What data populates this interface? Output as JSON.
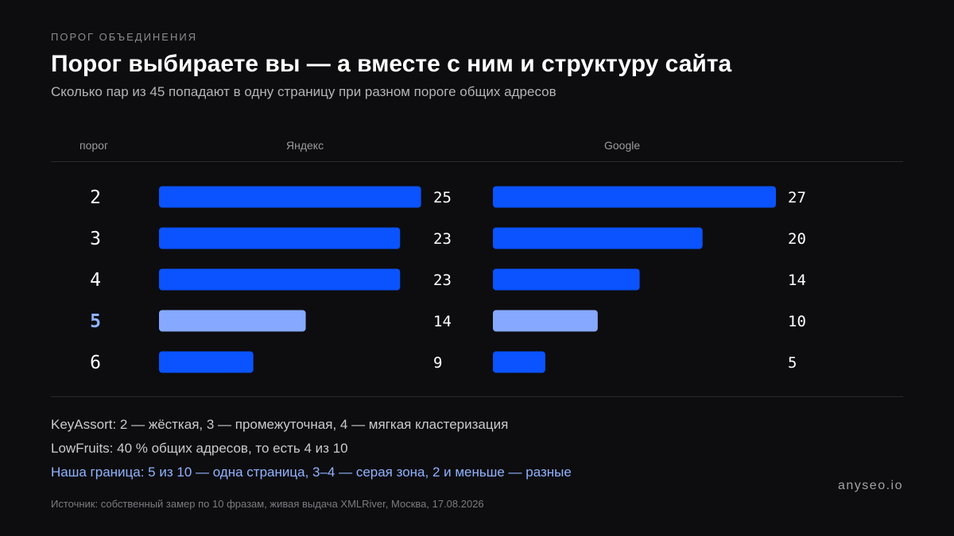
{
  "header": {
    "kicker": "ПОРОГ ОБЪЕДИНЕНИЯ",
    "title": "Порог выбираете вы — а вместе с ним и структуру сайта",
    "subtitle": "Сколько пар из 45 попадают в одну страницу при разном пороге общих адресов"
  },
  "columns": {
    "threshold": "порог",
    "yandex": "Яндекс",
    "google": "Google"
  },
  "chart_data": {
    "type": "bar",
    "orientation": "horizontal",
    "categories": [
      "2",
      "3",
      "4",
      "5",
      "6"
    ],
    "highlight_category": "5",
    "series": [
      {
        "name": "Яндекс",
        "values": [
          25,
          23,
          23,
          14,
          9
        ]
      },
      {
        "name": "Google",
        "values": [
          27,
          20,
          14,
          10,
          5
        ]
      }
    ],
    "colors": {
      "bar": "#0a53ff",
      "bar_highlight": "#86a8ff",
      "label_highlight": "#8fb3ff"
    },
    "grid": false
  },
  "notes": [
    {
      "text": "KeyAssort: 2 — жёсткая, 3 — промежуточная, 4 — мягкая кластеризация",
      "accent": false
    },
    {
      "text": "LowFruits: 40 % общих адресов, то есть 4 из 10",
      "accent": false
    },
    {
      "text": "Наша граница: 5 из 10 — одна страница, 3–4 — серая зона, 2 и меньше — разные",
      "accent": true
    }
  ],
  "footer": {
    "brand": "anyseo.io",
    "source": "Источник: собственный замер по 10 фразам, живая выдача XMLRiver, Москва, 17.08.2026"
  }
}
